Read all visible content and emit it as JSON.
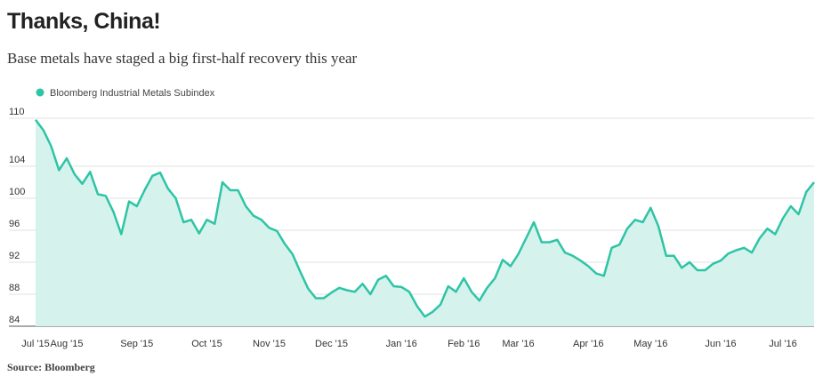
{
  "chart_data": {
    "type": "line",
    "title": "Thanks, China!",
    "subtitle": "Base metals have staged a big first-half recovery this year",
    "source": "Source: Bloomberg",
    "categories": [
      "Jul '15",
      null,
      null,
      null,
      "Aug '15",
      null,
      null,
      null,
      null,
      null,
      null,
      null,
      null,
      "Sep '15",
      null,
      null,
      null,
      null,
      null,
      null,
      null,
      null,
      "Oct '15",
      null,
      null,
      null,
      null,
      null,
      null,
      null,
      "Nov '15",
      null,
      null,
      null,
      null,
      null,
      null,
      null,
      "Dec '15",
      null,
      null,
      null,
      null,
      null,
      null,
      null,
      null,
      "Jan '16",
      null,
      null,
      null,
      null,
      null,
      null,
      null,
      "Feb '16",
      null,
      null,
      null,
      null,
      null,
      null,
      "Mar '16",
      null,
      null,
      null,
      null,
      null,
      null,
      null,
      null,
      "Apr '16",
      null,
      null,
      null,
      null,
      null,
      null,
      null,
      "May '16",
      null,
      null,
      null,
      null,
      null,
      null,
      null,
      null,
      "Jun '16",
      null,
      null,
      null,
      null,
      null,
      null,
      null,
      "Jul '16",
      null,
      null,
      null,
      null
    ],
    "series": [
      {
        "name": "Bloomberg Industrial Metals Subindex",
        "color": "#2ec4a6",
        "values": [
          109.8,
          108.5,
          106.5,
          103.5,
          105,
          103,
          101.8,
          103.3,
          100.5,
          100.3,
          98.3,
          95.5,
          99.6,
          99,
          101,
          102.8,
          103.2,
          101.2,
          100,
          97,
          97.3,
          95.6,
          97.3,
          96.8,
          102,
          101,
          101,
          99,
          97.8,
          97.3,
          96.3,
          95.9,
          94.3,
          93,
          90.8,
          88.7,
          87.5,
          87.5,
          88.2,
          88.8,
          88.5,
          88.3,
          89.3,
          88,
          89.8,
          90.3,
          89,
          88.9,
          88.3,
          86.5,
          85.2,
          85.8,
          86.7,
          89,
          88.3,
          90,
          88.3,
          87.2,
          88.8,
          90,
          92.3,
          91.5,
          93,
          95,
          97,
          94.5,
          94.5,
          94.8,
          93.2,
          92.8,
          92.2,
          91.5,
          90.6,
          90.3,
          93.8,
          94.2,
          96.2,
          97.3,
          97,
          98.8,
          96.5,
          92.8,
          92.8,
          91.3,
          92,
          91,
          91,
          91.8,
          92.2,
          93.1,
          93.5,
          93.8,
          93.2,
          95,
          96.2,
          95.5,
          97.5,
          99,
          98,
          100.8,
          102
        ]
      }
    ],
    "ylim": [
      84,
      110
    ],
    "yticks": [
      84,
      88,
      92,
      96,
      100,
      104,
      110
    ],
    "grid": true,
    "fill_area": true,
    "area_color": "#d5f3ec"
  }
}
